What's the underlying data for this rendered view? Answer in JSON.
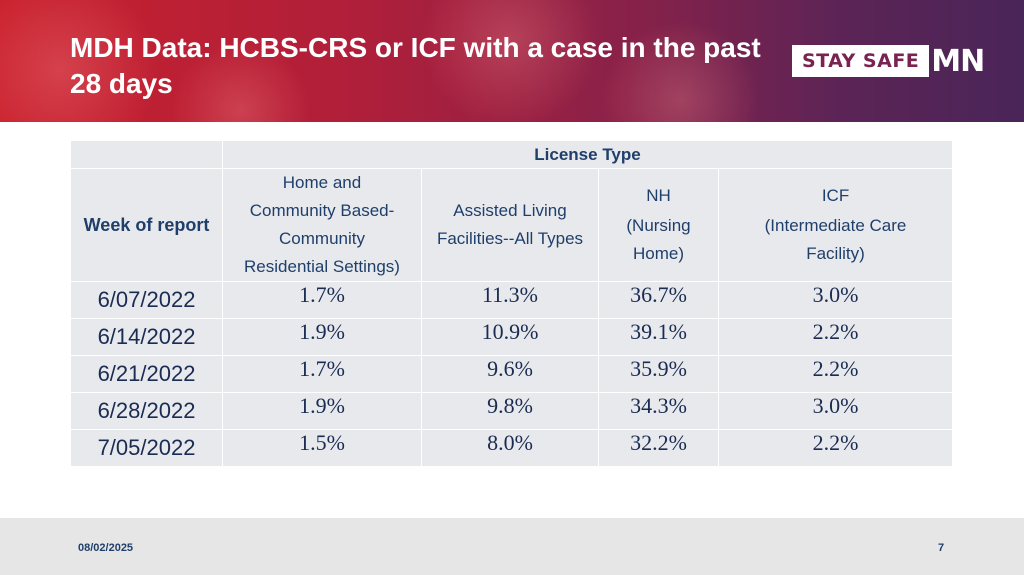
{
  "slide": {
    "title_line1": "MDH Data: HCBS-CRS or ICF with a case in the past",
    "title_line2": "28 days",
    "logo_text": "STAY SAFE",
    "logo_mn": "MN",
    "footer_date": "08/02/2025",
    "page_number": "7"
  },
  "table": {
    "group_header": "License Type",
    "row_header": "Week of report",
    "columns": [
      [
        "Home and",
        "Community Based-",
        "Community",
        "Residential Settings)"
      ],
      [
        "Assisted Living",
        "Facilities--All Types"
      ],
      [
        "NH",
        "(Nursing",
        "Home)"
      ],
      [
        "ICF",
        "(Intermediate Care",
        "Facility)"
      ]
    ],
    "rows": [
      {
        "week": "6/07/2022",
        "values": [
          "1.7%",
          "11.3%",
          "36.7%",
          "3.0%"
        ]
      },
      {
        "week": "6/14/2022",
        "values": [
          "1.9%",
          "10.9%",
          "39.1%",
          "2.2%"
        ]
      },
      {
        "week": "6/21/2022",
        "values": [
          "1.7%",
          "9.6%",
          "35.9%",
          "2.2%"
        ]
      },
      {
        "week": "6/28/2022",
        "values": [
          "1.9%",
          "9.8%",
          "34.3%",
          "3.0%"
        ]
      },
      {
        "week": "7/05/2022",
        "values": [
          "1.5%",
          "8.0%",
          "32.2%",
          "2.2%"
        ]
      }
    ]
  },
  "colors": {
    "banner_red": "#c8202d",
    "banner_purple": "#4a2558",
    "text_navy": "#1f3f6b",
    "cell_gray": "#e8e9ec"
  }
}
